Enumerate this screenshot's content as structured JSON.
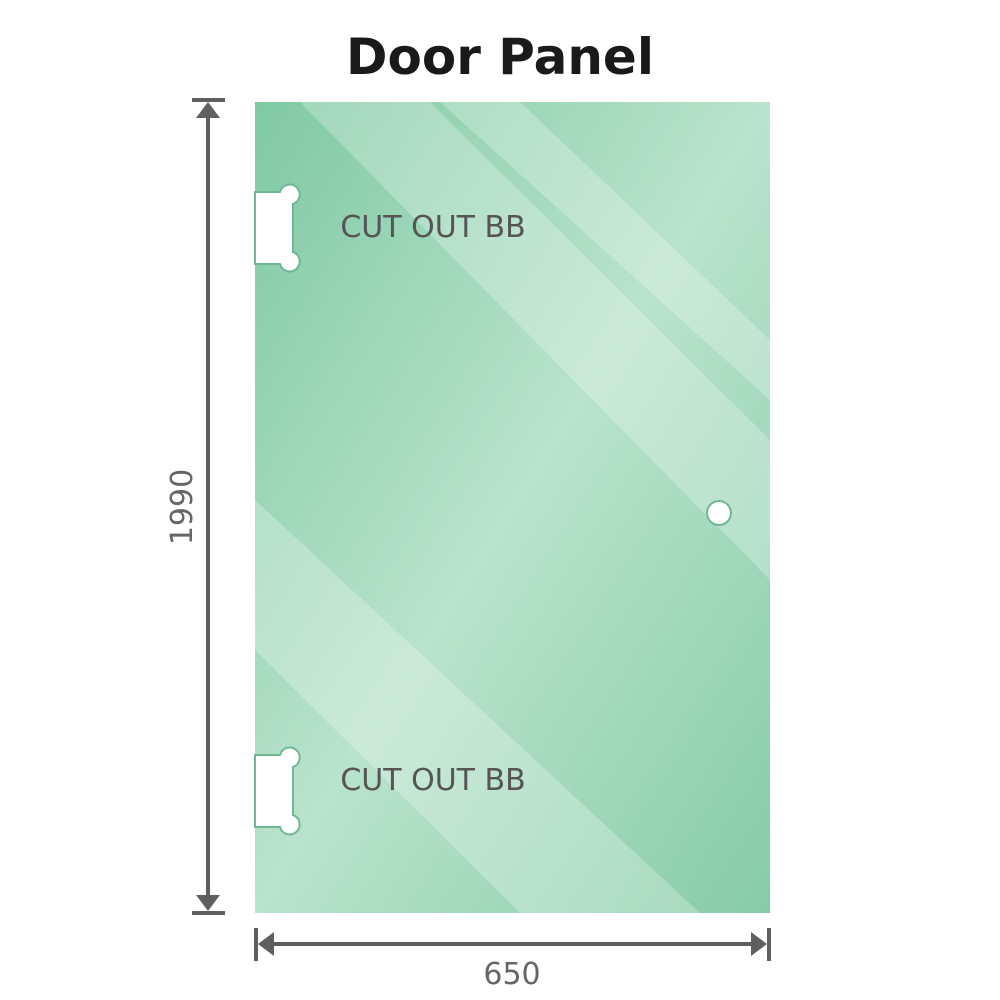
{
  "title": "Door Panel",
  "panel": {
    "height_label": "1990",
    "width_label": "650",
    "cutouts": [
      {
        "label": "CUT OUT BB"
      },
      {
        "label": "CUT OUT BB"
      }
    ]
  },
  "colors": {
    "glass": "#86cca7",
    "glass_light": "#bfe5d0",
    "dimension": "#5f5f5f"
  }
}
